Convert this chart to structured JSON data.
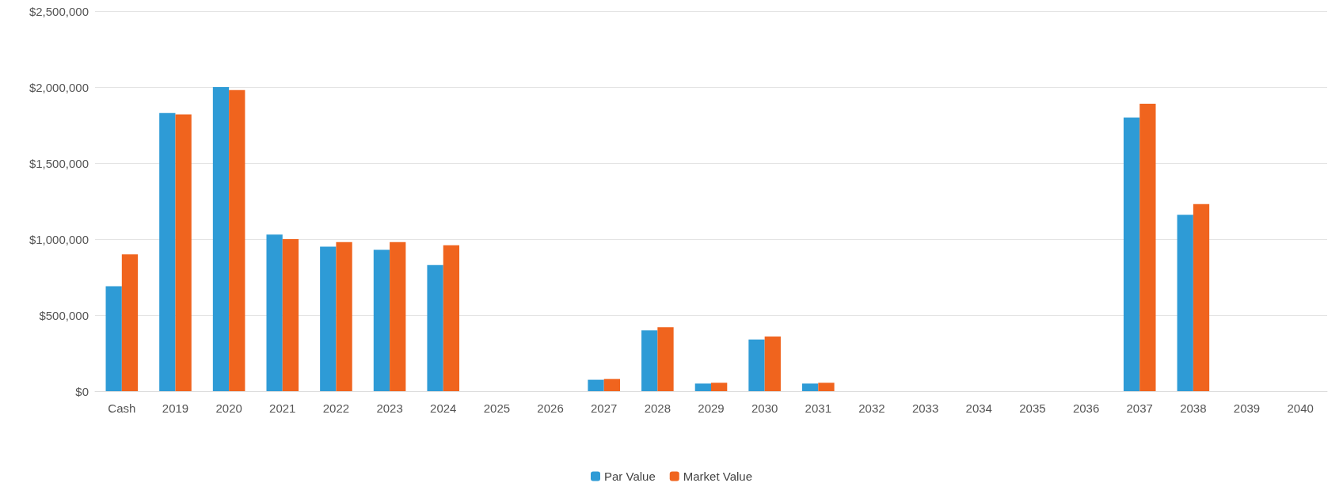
{
  "chart_data": {
    "type": "bar",
    "categories": [
      "Cash",
      "2019",
      "2020",
      "2021",
      "2022",
      "2023",
      "2024",
      "2025",
      "2026",
      "2027",
      "2028",
      "2029",
      "2030",
      "2031",
      "2032",
      "2033",
      "2034",
      "2035",
      "2036",
      "2037",
      "2038",
      "2039",
      "2040"
    ],
    "series": [
      {
        "name": "Par Value",
        "color": "#2e9bd6",
        "values": [
          690000,
          1830000,
          2000000,
          1030000,
          950000,
          930000,
          830000,
          0,
          0,
          75000,
          400000,
          50000,
          340000,
          50000,
          0,
          0,
          0,
          0,
          0,
          1800000,
          1160000,
          0,
          0
        ]
      },
      {
        "name": "Market Value",
        "color": "#f0641e",
        "values": [
          900000,
          1820000,
          1980000,
          1000000,
          980000,
          980000,
          960000,
          0,
          0,
          80000,
          420000,
          55000,
          360000,
          55000,
          0,
          0,
          0,
          0,
          0,
          1890000,
          1230000,
          0,
          0
        ]
      }
    ],
    "ylim": [
      0,
      2500000
    ],
    "yticks": [
      {
        "value": 0,
        "label": "$0"
      },
      {
        "value": 500000,
        "label": "$500,000"
      },
      {
        "value": 1000000,
        "label": "$1,000,000"
      },
      {
        "value": 1500000,
        "label": "$1,500,000"
      },
      {
        "value": 2000000,
        "label": "$2,000,000"
      },
      {
        "value": 2500000,
        "label": "$2,500,000"
      }
    ],
    "grid": "y",
    "legend": "bottom"
  }
}
